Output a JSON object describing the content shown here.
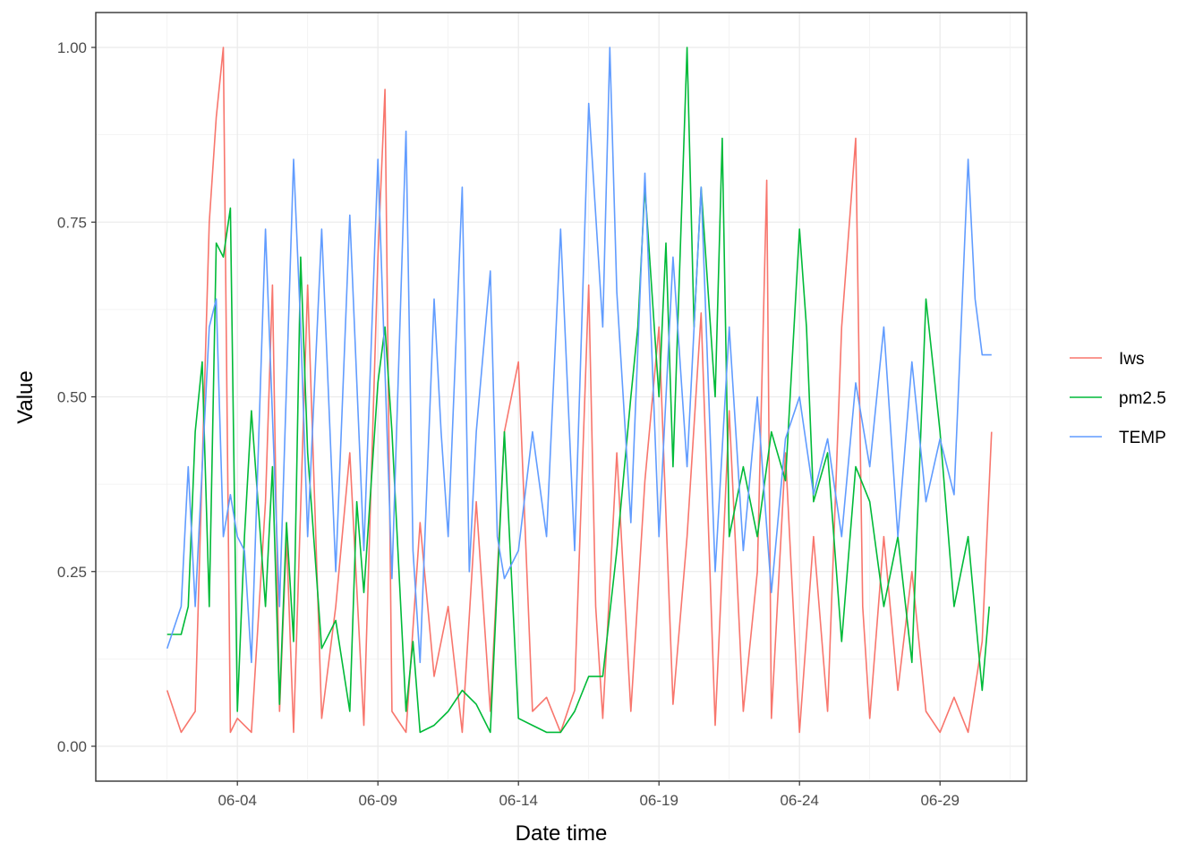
{
  "chart_data": {
    "type": "line",
    "title": "",
    "xlabel": "Date time",
    "ylabel": "Value",
    "x_ticks": [
      "06-04",
      "06-09",
      "06-14",
      "06-19",
      "06-24",
      "06-29"
    ],
    "y_ticks": [
      "0.00",
      "0.25",
      "0.50",
      "0.75",
      "1.00"
    ],
    "ylim": [
      0,
      1
    ],
    "xlim": [
      "2010-06-01",
      "2010-07-01"
    ],
    "grid": true,
    "legend_position": "right",
    "series": [
      {
        "name": "Iws",
        "color": "#F8766D",
        "x": [
          "06-01 12:00",
          "06-02 00:00",
          "06-02 12:00",
          "06-02 18:00",
          "06-03 00:00",
          "06-03 06:00",
          "06-03 12:00",
          "06-03 18:00",
          "06-04 00:00",
          "06-04 12:00",
          "06-05 00:00",
          "06-05 06:00",
          "06-05 12:00",
          "06-05 18:00",
          "06-06 00:00",
          "06-06 12:00",
          "06-07 00:00",
          "06-07 12:00",
          "06-08 00:00",
          "06-08 12:00",
          "06-09 00:00",
          "06-09 06:00",
          "06-09 12:00",
          "06-10 00:00",
          "06-10 12:00",
          "06-11 00:00",
          "06-11 12:00",
          "06-12 00:00",
          "06-12 12:00",
          "06-13 00:00",
          "06-13 12:00",
          "06-14 00:00",
          "06-14 12:00",
          "06-15 00:00",
          "06-15 12:00",
          "06-16 00:00",
          "06-16 12:00",
          "06-16 18:00",
          "06-17 00:00",
          "06-17 12:00",
          "06-18 00:00",
          "06-18 12:00",
          "06-19 00:00",
          "06-19 12:00",
          "06-20 00:00",
          "06-20 12:00",
          "06-21 00:00",
          "06-21 12:00",
          "06-22 00:00",
          "06-22 12:00",
          "06-22 20:00",
          "06-23 00:00",
          "06-23 12:00",
          "06-24 00:00",
          "06-24 12:00",
          "06-25 00:00",
          "06-25 12:00",
          "06-26 00:00",
          "06-26 06:00",
          "06-26 12:00",
          "06-27 00:00",
          "06-27 12:00",
          "06-28 00:00",
          "06-28 12:00",
          "06-29 00:00",
          "06-29 12:00",
          "06-30 00:00",
          "06-30 12:00",
          "06-30 20:00"
        ],
        "values": [
          0.08,
          0.02,
          0.05,
          0.4,
          0.75,
          0.9,
          1.0,
          0.02,
          0.04,
          0.02,
          0.35,
          0.66,
          0.05,
          0.3,
          0.02,
          0.66,
          0.04,
          0.2,
          0.42,
          0.03,
          0.7,
          0.94,
          0.05,
          0.02,
          0.32,
          0.1,
          0.2,
          0.02,
          0.35,
          0.05,
          0.45,
          0.55,
          0.05,
          0.07,
          0.02,
          0.08,
          0.66,
          0.2,
          0.04,
          0.42,
          0.05,
          0.38,
          0.6,
          0.06,
          0.3,
          0.62,
          0.03,
          0.48,
          0.05,
          0.25,
          0.81,
          0.04,
          0.42,
          0.02,
          0.3,
          0.05,
          0.6,
          0.87,
          0.2,
          0.04,
          0.3,
          0.08,
          0.25,
          0.05,
          0.02,
          0.07,
          0.02,
          0.15,
          0.45
        ]
      },
      {
        "name": "pm2.5",
        "color": "#00BA38",
        "x": [
          "06-01 12:00",
          "06-02 00:00",
          "06-02 06:00",
          "06-02 12:00",
          "06-02 18:00",
          "06-03 00:00",
          "06-03 06:00",
          "06-03 12:00",
          "06-03 18:00",
          "06-04 00:00",
          "06-04 06:00",
          "06-04 12:00",
          "06-05 00:00",
          "06-05 06:00",
          "06-05 12:00",
          "06-05 18:00",
          "06-06 00:00",
          "06-06 06:00",
          "06-06 12:00",
          "06-07 00:00",
          "06-07 12:00",
          "06-08 00:00",
          "06-08 06:00",
          "06-08 12:00",
          "06-09 00:00",
          "06-09 06:00",
          "06-09 12:00",
          "06-10 00:00",
          "06-10 06:00",
          "06-10 12:00",
          "06-11 00:00",
          "06-11 12:00",
          "06-12 00:00",
          "06-12 12:00",
          "06-13 00:00",
          "06-13 12:00",
          "06-14 00:00",
          "06-14 12:00",
          "06-15 00:00",
          "06-15 12:00",
          "06-16 00:00",
          "06-16 12:00",
          "06-17 00:00",
          "06-17 12:00",
          "06-18 00:00",
          "06-18 06:00",
          "06-18 12:00",
          "06-19 00:00",
          "06-19 06:00",
          "06-19 12:00",
          "06-20 00:00",
          "06-20 06:00",
          "06-20 12:00",
          "06-21 00:00",
          "06-21 06:00",
          "06-21 12:00",
          "06-22 00:00",
          "06-22 12:00",
          "06-23 00:00",
          "06-23 12:00",
          "06-24 00:00",
          "06-24 06:00",
          "06-24 12:00",
          "06-25 00:00",
          "06-25 12:00",
          "06-26 00:00",
          "06-26 12:00",
          "06-27 00:00",
          "06-27 12:00",
          "06-28 00:00",
          "06-28 12:00",
          "06-29 00:00",
          "06-29 12:00",
          "06-30 00:00",
          "06-30 12:00",
          "06-30 18:00"
        ],
        "values": [
          0.16,
          0.16,
          0.2,
          0.45,
          0.55,
          0.2,
          0.72,
          0.7,
          0.77,
          0.05,
          0.3,
          0.48,
          0.2,
          0.4,
          0.06,
          0.32,
          0.15,
          0.7,
          0.42,
          0.14,
          0.18,
          0.05,
          0.35,
          0.22,
          0.52,
          0.6,
          0.45,
          0.05,
          0.15,
          0.02,
          0.03,
          0.05,
          0.08,
          0.06,
          0.02,
          0.45,
          0.04,
          0.03,
          0.02,
          0.02,
          0.05,
          0.1,
          0.1,
          0.28,
          0.5,
          0.6,
          0.8,
          0.5,
          0.72,
          0.4,
          1.0,
          0.6,
          0.8,
          0.5,
          0.87,
          0.3,
          0.4,
          0.3,
          0.45,
          0.38,
          0.74,
          0.6,
          0.35,
          0.42,
          0.15,
          0.4,
          0.35,
          0.2,
          0.3,
          0.12,
          0.64,
          0.45,
          0.2,
          0.3,
          0.08,
          0.2
        ]
      },
      {
        "name": "TEMP",
        "color": "#619CFF",
        "x": [
          "06-01 12:00",
          "06-02 00:00",
          "06-02 06:00",
          "06-02 12:00",
          "06-03 00:00",
          "06-03 06:00",
          "06-03 12:00",
          "06-03 18:00",
          "06-04 00:00",
          "06-04 06:00",
          "06-04 12:00",
          "06-05 00:00",
          "06-05 12:00",
          "06-06 00:00",
          "06-06 06:00",
          "06-06 12:00",
          "06-07 00:00",
          "06-07 12:00",
          "06-08 00:00",
          "06-08 12:00",
          "06-09 00:00",
          "06-09 12:00",
          "06-10 00:00",
          "06-10 06:00",
          "06-10 12:00",
          "06-11 00:00",
          "06-11 06:00",
          "06-11 12:00",
          "06-12 00:00",
          "06-12 06:00",
          "06-12 12:00",
          "06-13 00:00",
          "06-13 06:00",
          "06-13 12:00",
          "06-14 00:00",
          "06-14 12:00",
          "06-15 00:00",
          "06-15 12:00",
          "06-16 00:00",
          "06-16 12:00",
          "06-17 00:00",
          "06-17 06:00",
          "06-17 12:00",
          "06-18 00:00",
          "06-18 12:00",
          "06-19 00:00",
          "06-19 12:00",
          "06-20 00:00",
          "06-20 12:00",
          "06-21 00:00",
          "06-21 12:00",
          "06-22 00:00",
          "06-22 12:00",
          "06-23 00:00",
          "06-23 12:00",
          "06-24 00:00",
          "06-24 12:00",
          "06-25 00:00",
          "06-25 12:00",
          "06-26 00:00",
          "06-26 12:00",
          "06-27 00:00",
          "06-27 12:00",
          "06-28 00:00",
          "06-28 12:00",
          "06-29 00:00",
          "06-29 12:00",
          "06-30 00:00",
          "06-30 06:00",
          "06-30 12:00",
          "06-30 20:00"
        ],
        "values": [
          0.14,
          0.2,
          0.4,
          0.2,
          0.6,
          0.64,
          0.3,
          0.36,
          0.3,
          0.28,
          0.12,
          0.74,
          0.2,
          0.84,
          0.6,
          0.3,
          0.74,
          0.25,
          0.76,
          0.28,
          0.84,
          0.24,
          0.88,
          0.28,
          0.12,
          0.64,
          0.45,
          0.3,
          0.8,
          0.25,
          0.45,
          0.68,
          0.3,
          0.24,
          0.28,
          0.45,
          0.3,
          0.74,
          0.28,
          0.92,
          0.6,
          1.0,
          0.65,
          0.32,
          0.82,
          0.3,
          0.7,
          0.4,
          0.8,
          0.25,
          0.6,
          0.28,
          0.5,
          0.22,
          0.44,
          0.5,
          0.36,
          0.44,
          0.3,
          0.52,
          0.4,
          0.6,
          0.3,
          0.55,
          0.35,
          0.44,
          0.36,
          0.84,
          0.64,
          0.56,
          0.56
        ]
      }
    ]
  }
}
